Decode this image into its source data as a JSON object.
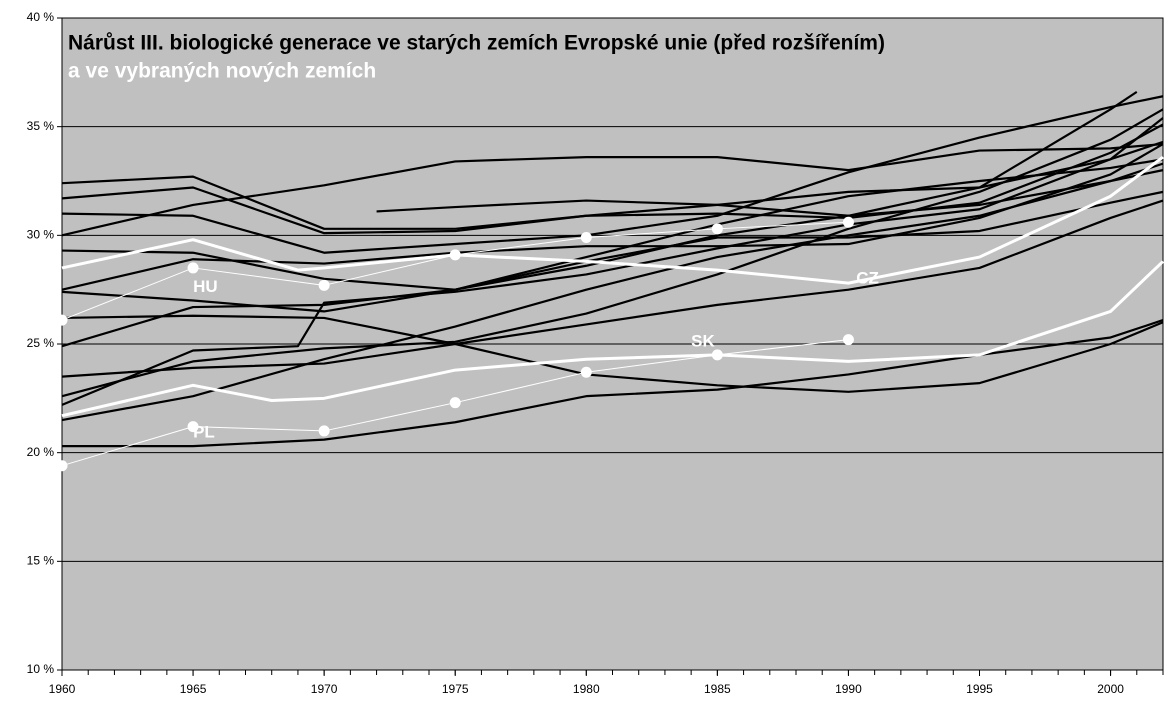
{
  "chart_data": {
    "type": "line",
    "title": "Nárůst III. biologické generace ve starých zemích Evropské unie (před rozšířením)",
    "subtitle": "a ve vybraných nových zemích",
    "xlim": [
      1960,
      2002
    ],
    "xticks": [
      1960,
      1965,
      1970,
      1975,
      1980,
      1985,
      1990,
      1995,
      2000
    ],
    "ylim": [
      10,
      40
    ],
    "yticks": [
      {
        "value": 10,
        "label": "10 %"
      },
      {
        "value": 15,
        "label": "15 %"
      },
      {
        "value": 20,
        "label": "20 %"
      },
      {
        "value": 25,
        "label": "25 %"
      },
      {
        "value": 30,
        "label": "30 %"
      },
      {
        "value": 35,
        "label": "35 %"
      },
      {
        "value": 40,
        "label": "40 %"
      }
    ],
    "grid": true,
    "series": [
      {
        "color": "#000000",
        "x": [
          1960,
          1965,
          1970,
          1975,
          1980,
          1985,
          1990,
          1995,
          2000,
          2002
        ],
        "values": [
          32.4,
          32.7,
          30.3,
          30.3,
          30.9,
          31.0,
          30.8,
          31.5,
          33.8,
          35.1
        ]
      },
      {
        "color": "#000000",
        "x": [
          1960,
          1965,
          1970,
          1975,
          1980,
          1985,
          1990,
          1995,
          2000,
          2002
        ],
        "values": [
          31.7,
          32.2,
          30.1,
          30.2,
          30.9,
          31.4,
          32.0,
          32.2,
          33.5,
          34.3
        ]
      },
      {
        "color": "#000000",
        "x": [
          1960,
          1965,
          1970,
          1975,
          1980,
          1985,
          1990,
          1995,
          2000,
          2002
        ],
        "values": [
          31.0,
          30.9,
          29.2,
          29.6,
          30.0,
          30.9,
          32.9,
          34.5,
          35.9,
          36.4
        ]
      },
      {
        "color": "#000000",
        "x": [
          1972,
          1975,
          1980,
          1985,
          1990,
          1995,
          2000,
          2001
        ],
        "values": [
          31.1,
          31.3,
          31.6,
          31.4,
          30.9,
          32.2,
          35.8,
          36.6
        ]
      },
      {
        "color": "#000000",
        "x": [
          1960,
          1965,
          1970,
          1975,
          1980,
          1985,
          1990,
          1995,
          2000,
          2002
        ],
        "values": [
          30.0,
          31.4,
          32.3,
          33.4,
          33.6,
          33.6,
          33.0,
          33.9,
          34.0,
          34.2
        ]
      },
      {
        "color": "#000000",
        "x": [
          1960,
          1965,
          1970,
          1975,
          1980,
          1985,
          1990,
          1995,
          2000,
          2002
        ],
        "values": [
          29.3,
          29.2,
          28.0,
          27.5,
          28.6,
          30.0,
          30.9,
          31.4,
          32.5,
          33.0
        ]
      },
      {
        "color": "#000000",
        "x": [
          1960,
          1965,
          1970,
          1975,
          1980,
          1985,
          1990,
          1995,
          2000,
          2002
        ],
        "values": [
          27.5,
          28.9,
          28.7,
          29.2,
          29.5,
          29.5,
          29.6,
          30.8,
          32.8,
          34.2
        ]
      },
      {
        "color": "#000000",
        "x": [
          1960,
          1965,
          1970,
          1975,
          1980,
          1985,
          1990,
          1995,
          2000,
          2002
        ],
        "values": [
          27.4,
          27.0,
          26.5,
          27.5,
          29.0,
          30.5,
          31.8,
          32.5,
          33.1,
          33.5
        ]
      },
      {
        "color": "#000000",
        "x": [
          1960,
          1965,
          1970,
          1975,
          1980,
          1985,
          1990,
          1995,
          2000,
          2002
        ],
        "values": [
          26.2,
          26.3,
          26.2,
          25.0,
          23.6,
          23.1,
          22.8,
          23.2,
          25.0,
          26.0
        ]
      },
      {
        "color": "#000000",
        "x": [
          1960,
          1965,
          1970,
          1975,
          1980,
          1985,
          1990,
          1995,
          2000,
          2002
        ],
        "values": [
          24.9,
          26.7,
          26.8,
          27.5,
          28.8,
          29.9,
          29.9,
          30.2,
          31.5,
          32.0
        ]
      },
      {
        "color": "#000000",
        "x": [
          1960,
          1965,
          1970,
          1975,
          1980,
          1985,
          1990,
          1995,
          2000,
          2002
        ],
        "values": [
          23.5,
          23.9,
          24.1,
          25.0,
          25.9,
          26.8,
          27.5,
          28.5,
          30.8,
          31.6
        ]
      },
      {
        "color": "#000000",
        "x": [
          1960,
          1965,
          1970,
          1975,
          1980,
          1985,
          1990,
          1995,
          2000,
          2002
        ],
        "values": [
          22.6,
          24.2,
          24.8,
          25.1,
          26.4,
          28.2,
          30.3,
          32.0,
          34.4,
          35.8
        ]
      },
      {
        "color": "#000000",
        "x": [
          1960,
          1965,
          1969,
          1970,
          1975,
          1980,
          1985,
          1990,
          1995,
          2000,
          2002
        ],
        "values": [
          22.2,
          24.7,
          24.9,
          26.9,
          27.4,
          28.2,
          29.4,
          30.5,
          31.2,
          33.5,
          35.4
        ]
      },
      {
        "color": "#000000",
        "x": [
          1960,
          1965,
          1970,
          1975,
          1980,
          1985,
          1990,
          1995,
          2000,
          2002
        ],
        "values": [
          21.5,
          22.6,
          24.3,
          25.8,
          27.5,
          29.0,
          30.0,
          30.9,
          32.5,
          33.3
        ]
      },
      {
        "color": "#000000",
        "x": [
          1960,
          1965,
          1970,
          1975,
          1980,
          1985,
          1990,
          1995,
          2000,
          2002
        ],
        "values": [
          20.3,
          20.3,
          20.6,
          21.4,
          22.6,
          22.9,
          23.6,
          24.5,
          25.3,
          26.1
        ]
      },
      {
        "name": "CZ",
        "color": "#ffffff",
        "x": [
          1960,
          1965,
          1969,
          1970,
          1975,
          1980,
          1985,
          1990,
          1995,
          2000,
          2002
        ],
        "values": [
          28.5,
          29.8,
          28.4,
          28.5,
          29.1,
          28.8,
          28.4,
          27.8,
          29.0,
          31.8,
          33.6
        ]
      },
      {
        "name": "SK",
        "color": "#ffffff",
        "x": [
          1960,
          1965,
          1968,
          1970,
          1975,
          1980,
          1985,
          1990,
          1995,
          2000,
          2002
        ],
        "values": [
          21.7,
          23.1,
          22.4,
          22.5,
          23.8,
          24.3,
          24.5,
          24.2,
          24.5,
          26.5,
          28.8
        ]
      },
      {
        "name": "HU",
        "color": "#ffffff",
        "markers": true,
        "x": [
          1960,
          1965,
          1970,
          1975,
          1980,
          1985,
          1990
        ],
        "values": [
          26.1,
          28.5,
          27.7,
          29.1,
          29.9,
          30.3,
          30.6
        ]
      },
      {
        "name": "PL",
        "color": "#ffffff",
        "markers": true,
        "x": [
          1960,
          1965,
          1970,
          1975,
          1980,
          1985,
          1990
        ],
        "values": [
          19.4,
          21.2,
          21.0,
          22.3,
          23.7,
          24.5,
          25.2
        ]
      }
    ]
  }
}
